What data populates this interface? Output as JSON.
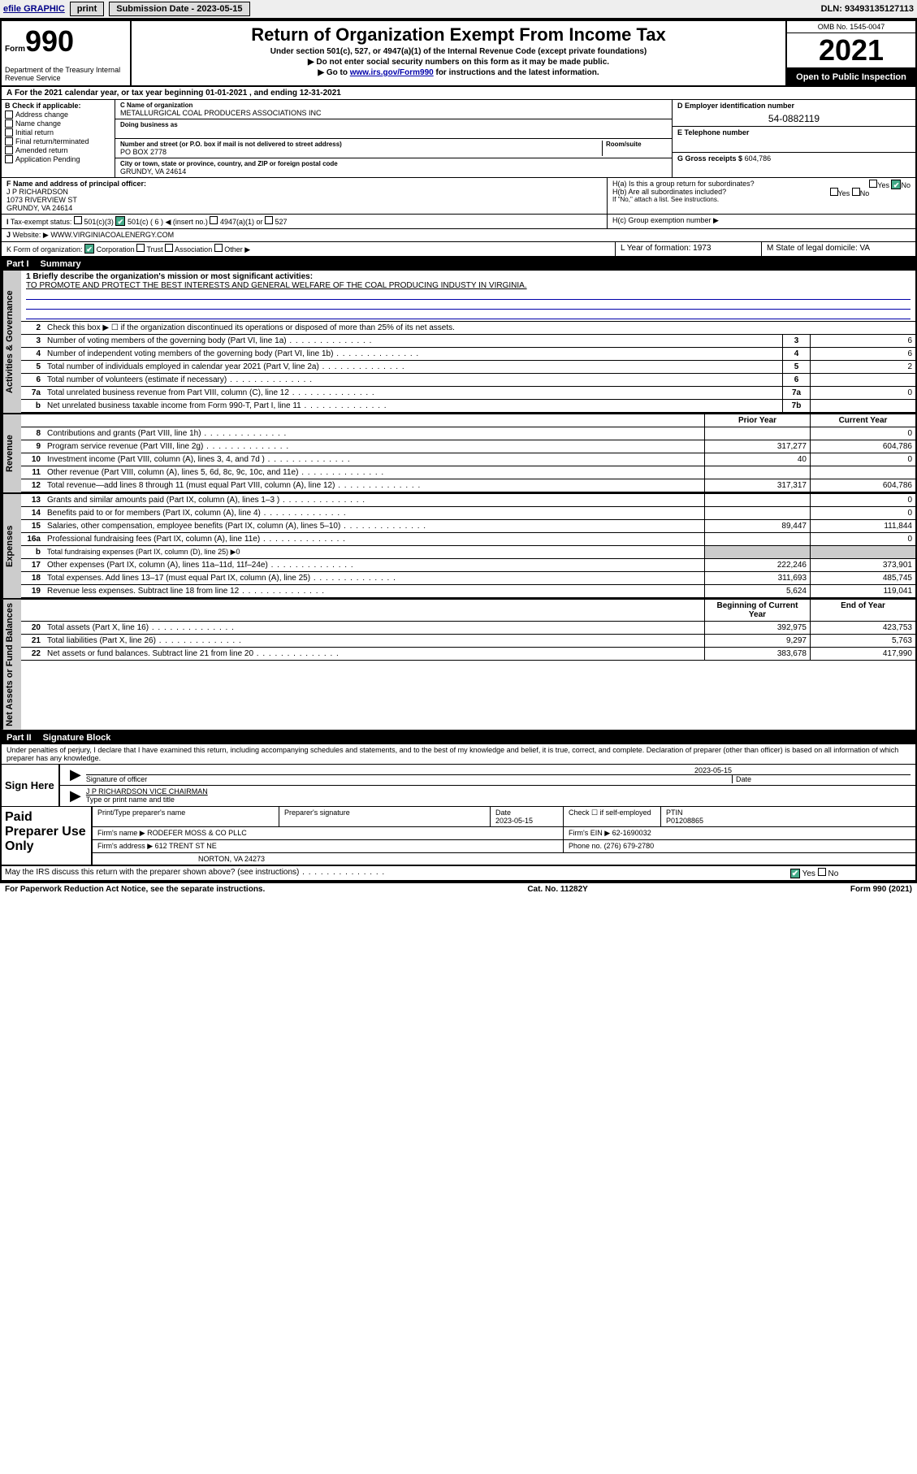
{
  "topbar": {
    "efile": "efile GRAPHIC",
    "print": "print",
    "submission_label": "Submission Date - 2023-05-15",
    "dln": "DLN: 93493135127113"
  },
  "header": {
    "form_prefix": "Form",
    "form_no": "990",
    "dept": "Department of the Treasury Internal Revenue Service",
    "title": "Return of Organization Exempt From Income Tax",
    "sub1": "Under section 501(c), 527, or 4947(a)(1) of the Internal Revenue Code (except private foundations)",
    "sub2": "▶ Do not enter social security numbers on this form as it may be made public.",
    "sub3_pre": "▶ Go to ",
    "sub3_link": "www.irs.gov/Form990",
    "sub3_post": " for instructions and the latest information.",
    "omb": "OMB No. 1545-0047",
    "year": "2021",
    "open": "Open to Public Inspection"
  },
  "period": "For the 2021 calendar year, or tax year beginning 01-01-2021  , and ending 12-31-2021",
  "boxB": {
    "label": "B Check if applicable:",
    "items": [
      "Address change",
      "Name change",
      "Initial return",
      "Final return/terminated",
      "Amended return",
      "Application Pending"
    ]
  },
  "boxC": {
    "name_lbl": "C Name of organization",
    "name": "METALLURGICAL COAL PRODUCERS ASSOCIATIONS INC",
    "dba_lbl": "Doing business as",
    "addr_lbl": "Number and street (or P.O. box if mail is not delivered to street address)",
    "room_lbl": "Room/suite",
    "addr": "PO BOX 2778",
    "city_lbl": "City or town, state or province, country, and ZIP or foreign postal code",
    "city": "GRUNDY, VA  24614"
  },
  "boxD": {
    "lbl": "D Employer identification number",
    "val": "54-0882119"
  },
  "boxE": {
    "lbl": "E Telephone number",
    "val": ""
  },
  "boxG": {
    "lbl": "G Gross receipts $",
    "val": "604,786"
  },
  "boxF": {
    "lbl": "F  Name and address of principal officer:",
    "name": "J P RICHARDSON",
    "addr1": "1073 RIVERVIEW ST",
    "addr2": "GRUNDY, VA  24614"
  },
  "boxH": {
    "a": "H(a)  Is this a group return for subordinates?",
    "a_yes": "Yes",
    "a_no": "No",
    "b": "H(b)  Are all subordinates included?",
    "b_note": "If \"No,\" attach a list. See instructions.",
    "c": "H(c)  Group exemption number ▶"
  },
  "boxI": {
    "lbl": "Tax-exempt status:",
    "o1": "501(c)(3)",
    "o2": "501(c) ( 6 ) ◀ (insert no.)",
    "o3": "4947(a)(1) or",
    "o4": "527"
  },
  "boxJ": {
    "lbl": "Website: ▶",
    "val": "WWW.VIRGINIACOALENERGY.COM"
  },
  "boxK": {
    "lbl": "K Form of organization:",
    "opts": [
      "Corporation",
      "Trust",
      "Association",
      "Other ▶"
    ]
  },
  "boxL": {
    "lbl": "L Year of formation:",
    "val": "1973"
  },
  "boxM": {
    "lbl": "M State of legal domicile:",
    "val": "VA"
  },
  "partI": {
    "num": "Part I",
    "title": "Summary"
  },
  "mission_lbl": "1  Briefly describe the organization's mission or most significant activities:",
  "mission": "TO PROMOTE AND PROTECT THE BEST INTERESTS AND GENERAL WELFARE OF THE COAL PRODUCING INDUSTY IN VIRGINIA.",
  "gov": {
    "l2": "Check this box ▶ ☐  if the organization discontinued its operations or disposed of more than 25% of its net assets.",
    "rows": [
      {
        "n": "3",
        "d": "Number of voting members of the governing body (Part VI, line 1a)",
        "b": "3",
        "v": "6"
      },
      {
        "n": "4",
        "d": "Number of independent voting members of the governing body (Part VI, line 1b)",
        "b": "4",
        "v": "6"
      },
      {
        "n": "5",
        "d": "Total number of individuals employed in calendar year 2021 (Part V, line 2a)",
        "b": "5",
        "v": "2"
      },
      {
        "n": "6",
        "d": "Total number of volunteers (estimate if necessary)",
        "b": "6",
        "v": ""
      },
      {
        "n": "7a",
        "d": "Total unrelated business revenue from Part VIII, column (C), line 12",
        "b": "7a",
        "v": "0"
      },
      {
        "n": "b",
        "d": "Net unrelated business taxable income from Form 990-T, Part I, line 11",
        "b": "7b",
        "v": ""
      }
    ]
  },
  "columns": {
    "prior": "Prior Year",
    "current": "Current Year"
  },
  "revenue": [
    {
      "n": "8",
      "d": "Contributions and grants (Part VIII, line 1h)",
      "p": "",
      "c": "0"
    },
    {
      "n": "9",
      "d": "Program service revenue (Part VIII, line 2g)",
      "p": "317,277",
      "c": "604,786"
    },
    {
      "n": "10",
      "d": "Investment income (Part VIII, column (A), lines 3, 4, and 7d )",
      "p": "40",
      "c": "0"
    },
    {
      "n": "11",
      "d": "Other revenue (Part VIII, column (A), lines 5, 6d, 8c, 9c, 10c, and 11e)",
      "p": "",
      "c": ""
    },
    {
      "n": "12",
      "d": "Total revenue—add lines 8 through 11 (must equal Part VIII, column (A), line 12)",
      "p": "317,317",
      "c": "604,786"
    }
  ],
  "expenses": [
    {
      "n": "13",
      "d": "Grants and similar amounts paid (Part IX, column (A), lines 1–3 )",
      "p": "",
      "c": "0"
    },
    {
      "n": "14",
      "d": "Benefits paid to or for members (Part IX, column (A), line 4)",
      "p": "",
      "c": "0"
    },
    {
      "n": "15",
      "d": "Salaries, other compensation, employee benefits (Part IX, column (A), lines 5–10)",
      "p": "89,447",
      "c": "111,844"
    },
    {
      "n": "16a",
      "d": "Professional fundraising fees (Part IX, column (A), line 11e)",
      "p": "",
      "c": "0"
    },
    {
      "n": "b",
      "d": "Total fundraising expenses (Part IX, column (D), line 25) ▶0",
      "p": "—",
      "c": "—"
    },
    {
      "n": "17",
      "d": "Other expenses (Part IX, column (A), lines 11a–11d, 11f–24e)",
      "p": "222,246",
      "c": "373,901"
    },
    {
      "n": "18",
      "d": "Total expenses. Add lines 13–17 (must equal Part IX, column (A), line 25)",
      "p": "311,693",
      "c": "485,745"
    },
    {
      "n": "19",
      "d": "Revenue less expenses. Subtract line 18 from line 12",
      "p": "5,624",
      "c": "119,041"
    }
  ],
  "netcols": {
    "beg": "Beginning of Current Year",
    "end": "End of Year"
  },
  "net": [
    {
      "n": "20",
      "d": "Total assets (Part X, line 16)",
      "p": "392,975",
      "c": "423,753"
    },
    {
      "n": "21",
      "d": "Total liabilities (Part X, line 26)",
      "p": "9,297",
      "c": "5,763"
    },
    {
      "n": "22",
      "d": "Net assets or fund balances. Subtract line 21 from line 20",
      "p": "383,678",
      "c": "417,990"
    }
  ],
  "partII": {
    "num": "Part II",
    "title": "Signature Block"
  },
  "penalty": "Under penalties of perjury, I declare that I have examined this return, including accompanying schedules and statements, and to the best of my knowledge and belief, it is true, correct, and complete. Declaration of preparer (other than officer) is based on all information of which preparer has any knowledge.",
  "sign": {
    "here": "Sign Here",
    "date": "2023-05-15",
    "sig_lbl": "Signature of officer",
    "date_lbl": "Date",
    "name": "J P RICHARDSON  VICE CHAIRMAN",
    "name_lbl": "Type or print name and title"
  },
  "paid": {
    "title": "Paid Preparer Use Only",
    "h": [
      "Print/Type preparer's name",
      "Preparer's signature",
      "Date",
      "",
      "PTIN"
    ],
    "r1": [
      "",
      "",
      "2023-05-15",
      "Check ☐ if self-employed",
      "P01208865"
    ],
    "firm_lbl": "Firm's name   ▶",
    "firm": "RODEFER MOSS & CO PLLC",
    "ein_lbl": "Firm's EIN ▶",
    "ein": "62-1690032",
    "addr_lbl": "Firm's address ▶",
    "addr1": "612 TRENT ST NE",
    "addr2": "NORTON, VA  24273",
    "phone_lbl": "Phone no.",
    "phone": "(276) 679-2780"
  },
  "discuss": "May the IRS discuss this return with the preparer shown above? (see instructions)",
  "discuss_yes": "Yes",
  "discuss_no": "No",
  "footer": {
    "pra": "For Paperwork Reduction Act Notice, see the separate instructions.",
    "cat": "Cat. No. 11282Y",
    "form": "Form 990 (2021)"
  },
  "vtabs": {
    "gov": "Activities & Governance",
    "rev": "Revenue",
    "exp": "Expenses",
    "net": "Net Assets or Fund Balances"
  }
}
